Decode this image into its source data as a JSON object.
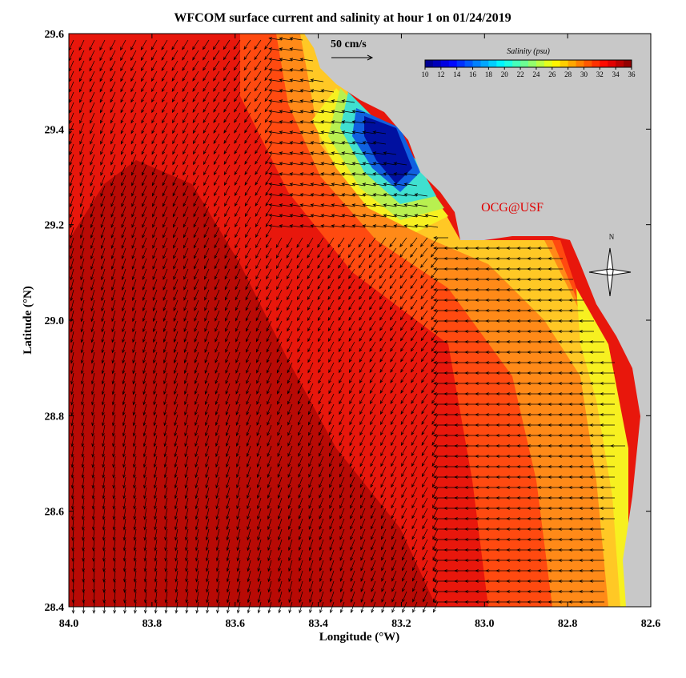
{
  "title": "WFCOM surface current and salinity at hour 1 on 01/24/2019",
  "map": {
    "xlabel": "Longitude (°W)",
    "ylabel": "Latitude (°N)",
    "xlim": [
      84.0,
      82.6
    ],
    "ylim": [
      28.4,
      29.6
    ],
    "xticks": [
      {
        "value": 84.0,
        "label": "84.0"
      },
      83.8,
      83.6,
      83.4,
      83.2,
      {
        "value": 83.0,
        "label": "83.0"
      },
      82.8,
      82.6
    ],
    "yticks": [
      28.4,
      28.6,
      28.8,
      {
        "value": 29.0,
        "label": "29.0"
      },
      29.2,
      29.4,
      29.6
    ]
  },
  "colorbar": {
    "title": "Salinity (psu)",
    "lim": [
      10,
      36
    ],
    "ticks": [
      10,
      12,
      14,
      16,
      18,
      20,
      22,
      24,
      26,
      28,
      30,
      32,
      34,
      36
    ]
  },
  "scale_label": "50 cm/s",
  "credit": "OCG@USF",
  "compass": "N"
}
